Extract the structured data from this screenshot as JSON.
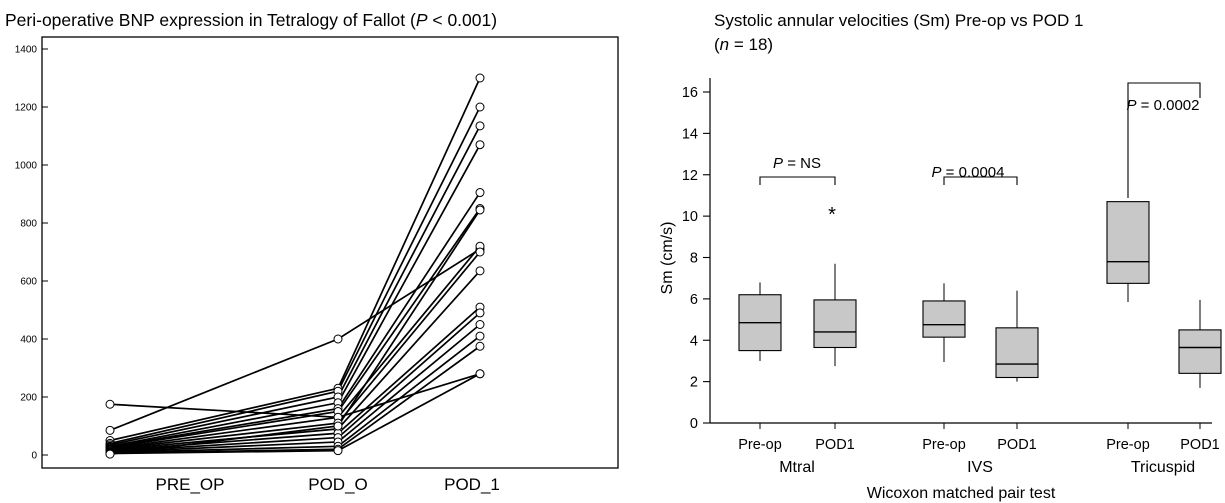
{
  "chart_data": [
    {
      "type": "line",
      "title_prefix": "Peri-operative BNP expression in Tetralogy of Fallot (",
      "title_p": "P",
      "title_suffix": " < 0.001)",
      "categories": [
        "PRE_OP",
        "POD_O",
        "POD_1"
      ],
      "yticks": [
        "0",
        "200",
        "400",
        "600",
        "800",
        "1000",
        "1200",
        "1400"
      ],
      "ylim": [
        0,
        1400
      ],
      "series": [
        {
          "values": [
            175,
            130,
            280
          ]
        },
        {
          "values": [
            85,
            400,
            710
          ]
        },
        {
          "values": [
            50,
            230,
            1300
          ]
        },
        {
          "values": [
            40,
            220,
            1200
          ]
        },
        {
          "values": [
            35,
            200,
            1135
          ]
        },
        {
          "values": [
            30,
            180,
            1070
          ]
        },
        {
          "values": [
            28,
            160,
            905
          ]
        },
        {
          "values": [
            25,
            150,
            850
          ]
        },
        {
          "values": [
            22,
            130,
            720
          ]
        },
        {
          "values": [
            20,
            110,
            700
          ]
        },
        {
          "values": [
            18,
            90,
            635
          ]
        },
        {
          "values": [
            15,
            75,
            510
          ]
        },
        {
          "values": [
            12,
            60,
            490
          ]
        },
        {
          "values": [
            10,
            45,
            450
          ]
        },
        {
          "values": [
            8,
            30,
            410
          ]
        },
        {
          "values": [
            6,
            20,
            375
          ]
        },
        {
          "values": [
            5,
            15,
            280
          ]
        },
        {
          "values": [
            3,
            100,
            845
          ]
        }
      ]
    },
    {
      "type": "box",
      "title_line1": "Systolic annular velocities (Sm) Pre-op vs POD 1",
      "title_n": "n",
      "title_n_suffix": " = 18)",
      "ylabel": "Sm (cm/s)",
      "xlabel": "Wicoxon matched pair test",
      "yticks": [
        "0",
        "2",
        "4",
        "6",
        "8",
        "10",
        "12",
        "14",
        "16"
      ],
      "ylim": [
        0,
        16.5
      ],
      "groups": [
        {
          "name": "Mtral",
          "p_label": "P",
          "p_value": " = NS"
        },
        {
          "name": "IVS",
          "p_label": "P",
          "p_value": " = 0.0004"
        },
        {
          "name": "Tricuspid",
          "p_label": "P",
          "p_value": " = 0.0002"
        }
      ],
      "boxes": [
        {
          "label": "Pre-op",
          "min": 3.0,
          "q1": 3.5,
          "median": 4.85,
          "q3": 6.2,
          "max": 6.8
        },
        {
          "label": "POD1",
          "min": 2.75,
          "q1": 3.65,
          "median": 4.4,
          "q3": 5.95,
          "max": 7.7,
          "outlier": 10.2,
          "outlier_symbol": "*"
        },
        {
          "label": "Pre-op",
          "min": 2.95,
          "q1": 4.15,
          "median": 4.75,
          "q3": 5.9,
          "max": 6.75
        },
        {
          "label": "POD1",
          "min": 2.0,
          "q1": 2.2,
          "median": 2.85,
          "q3": 4.6,
          "max": 6.4
        },
        {
          "label": "Pre-op",
          "min": 5.85,
          "q1": 6.75,
          "median": 7.8,
          "q3": 10.7,
          "max": 10.7
        },
        {
          "label": "POD1",
          "min": 1.7,
          "q1": 2.4,
          "median": 3.65,
          "q3": 4.5,
          "max": 5.95
        }
      ]
    }
  ],
  "colors": {
    "box_fill": "#c8c8c8",
    "line": "#000000",
    "marker_fill": "#ffffff"
  }
}
